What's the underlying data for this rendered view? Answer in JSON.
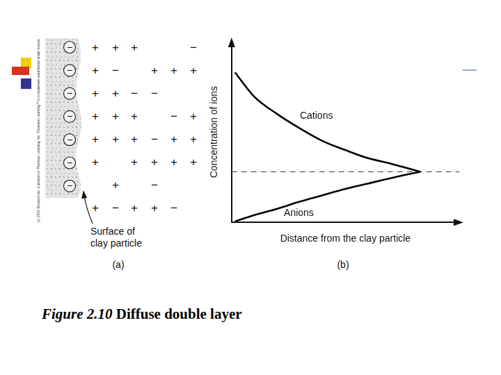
{
  "copyright": "(c) 2001 Brooks/Cole, a division of Thomson Learning, Inc.  Thomson Learning™ is a trademark used herein under license.",
  "panel_a": {
    "label": "(a)",
    "surface_label": [
      "Surface of",
      "clay particle"
    ],
    "surface_charges": [
      "−",
      "−",
      "−",
      "−",
      "−",
      "−",
      "−"
    ],
    "ions": [
      [
        "+",
        "+",
        "+",
        null,
        null,
        "−"
      ],
      [
        "+",
        "−",
        null,
        "+",
        "+",
        "+"
      ],
      [
        "+",
        "+",
        "−",
        "−",
        null,
        null
      ],
      [
        "+",
        "+",
        "+",
        null,
        "−",
        "+"
      ],
      [
        "+",
        "+",
        "+",
        "−",
        "+",
        "+"
      ],
      [
        "+",
        null,
        "+",
        "+",
        "+",
        "+"
      ],
      [
        null,
        "+",
        null,
        "−",
        null,
        null
      ],
      [
        "+",
        "−",
        "+",
        "+",
        "−",
        null
      ]
    ]
  },
  "chart_data": {
    "type": "line",
    "panel_label": "(b)",
    "xlabel": "Distance from the clay particle",
    "ylabel": "Concentration of ions",
    "xlim": [
      0,
      10
    ],
    "ylim": [
      0,
      10
    ],
    "tick_labels": false,
    "grid": false,
    "series": [
      {
        "name": "Cations",
        "color": "#000000",
        "line_style": "solid",
        "marker": "none",
        "x": [
          0.15,
          1,
          2,
          3,
          4,
          5,
          6,
          7,
          8.3
        ],
        "values": [
          8.3,
          6.95,
          6.0,
          5.2,
          4.5,
          4.0,
          3.55,
          3.25,
          2.8
        ]
      },
      {
        "name": "Anions",
        "color": "#000000",
        "line_style": "solid",
        "marker": "none",
        "x": [
          0.15,
          1,
          2,
          3,
          4,
          5,
          6,
          7,
          8.3
        ],
        "values": [
          0.05,
          0.4,
          0.75,
          1.15,
          1.5,
          1.85,
          2.15,
          2.45,
          2.8
        ]
      },
      {
        "color": "#555555",
        "line_style": "dashed",
        "marker": "none",
        "x": [
          0,
          10
        ],
        "values": [
          2.8,
          2.8
        ]
      }
    ],
    "annotations": [
      {
        "text": "Cations",
        "x": 3.0,
        "y": 5.9
      },
      {
        "text": "Anions",
        "x": 2.3,
        "y": 0.5
      }
    ]
  },
  "caption": {
    "label": "Figure 2.10",
    "title": "Diffuse double layer"
  }
}
